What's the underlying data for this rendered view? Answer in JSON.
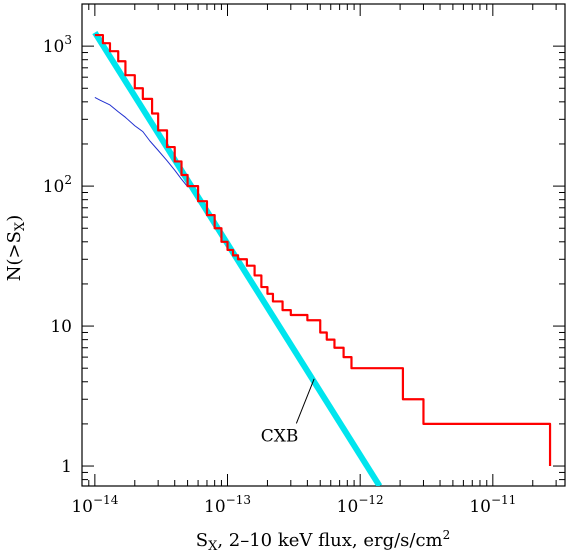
{
  "chart_data": {
    "type": "line",
    "xlabel": "S_X, 2-10 keV flux, erg/s/cm²",
    "xlabel_parts": {
      "base": "S",
      "sub": "X",
      "rest": ", 2–10 keV flux, erg/s/cm",
      "sup": "2"
    },
    "ylabel": "N(>S_X)",
    "ylabel_parts": {
      "pre": "N(>S",
      "sub": "X",
      "post": ")"
    },
    "xscale": "log",
    "yscale": "log",
    "xlim": [
      8e-15,
      3.5e-11
    ],
    "ylim": [
      0.72,
      2000
    ],
    "grid": false,
    "x_ticks": [
      {
        "value": 1e-14,
        "base": "10",
        "exp": "−14"
      },
      {
        "value": 1e-13,
        "base": "10",
        "exp": "−13"
      },
      {
        "value": 1e-12,
        "base": "10",
        "exp": "−12"
      },
      {
        "value": 1e-11,
        "base": "10",
        "exp": "−11"
      }
    ],
    "y_ticks": [
      {
        "value": 1,
        "base": "1",
        "exp": ""
      },
      {
        "value": 10,
        "base": "10",
        "exp": ""
      },
      {
        "value": 100,
        "base": "10",
        "exp": "2"
      },
      {
        "value": 1000,
        "base": "10",
        "exp": "3"
      }
    ],
    "series": [
      {
        "color": "#00e5ee",
        "style": "thick",
        "x": [
          1e-14,
          1.4e-12
        ],
        "y": [
          1250,
          0.72
        ]
      },
      {
        "color": "#2030d0",
        "style": "thin",
        "x": [
          1e-14,
          1.1e-14,
          1.3e-14,
          1.5e-14,
          1.7e-14,
          2e-14,
          2.3e-14,
          2.6e-14,
          3e-14,
          3.5e-14,
          4e-14,
          4.5e-14,
          5e-14
        ],
        "y": [
          430,
          410,
          380,
          340,
          310,
          270,
          245,
          210,
          180,
          152,
          130,
          112,
          99
        ]
      },
      {
        "color": "#ff0000",
        "style": "step",
        "x": [
          1e-14,
          1.15e-14,
          1.3e-14,
          1.5e-14,
          1.7e-14,
          2e-14,
          2.3e-14,
          2.7e-14,
          3e-14,
          3.5e-14,
          4e-14,
          4.5e-14,
          5e-14,
          6e-14,
          7e-14,
          8e-14,
          9e-14,
          1e-13,
          1.1e-13,
          1.2e-13,
          1.4e-13,
          1.6e-13,
          1.8e-13,
          2e-13,
          2.2e-13,
          2.6e-13,
          3e-13,
          4e-13,
          5e-13,
          5.6e-13,
          6.4e-13,
          7.5e-13,
          8.6e-13,
          2.1e-12,
          3e-12,
          2.7e-11
        ],
        "y": [
          1200,
          1050,
          920,
          780,
          620,
          500,
          420,
          330,
          250,
          190,
          150,
          120,
          100,
          78,
          62,
          50,
          40,
          35,
          32,
          30,
          27,
          23,
          19,
          17,
          15,
          13,
          12,
          11,
          9,
          8,
          7,
          6,
          5,
          3,
          2,
          1
        ]
      }
    ],
    "annotations": [
      {
        "text": "CXB",
        "leader_from": [
          1.65e-13,
          1.5
        ],
        "leader_to": [
          4.5e-13,
          4.2
        ]
      }
    ]
  }
}
